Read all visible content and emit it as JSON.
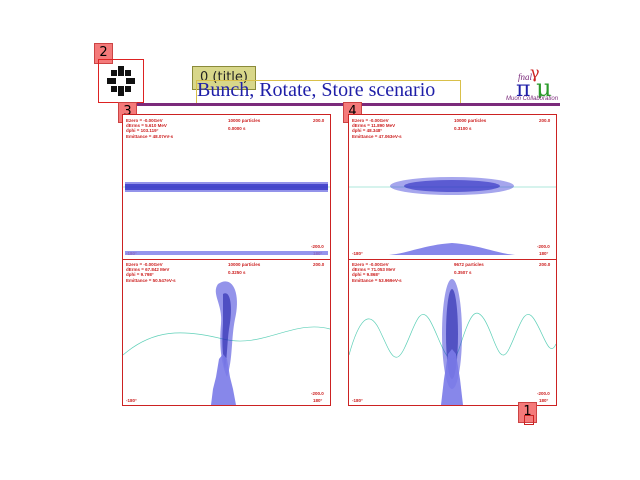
{
  "markers": {
    "m0": "0 (title)",
    "m1": "1",
    "m2": "2",
    "m3": "3",
    "m4": "4"
  },
  "slide": {
    "title": "Bunch, Rotate, Store scenario",
    "logo_caption": "Muon Collaboration",
    "logo_glyphs": "μ"
  },
  "panels": {
    "left_top": {
      "line1": "Ezero =  -0.00GeV",
      "line2": "dErms =  5.610 MeV",
      "line3": "dphi =  103.119°",
      "line4": "Emittance = 48.07eV-s",
      "count": "10000 particles",
      "time": "0.0000 s",
      "ytop": "200.0",
      "ybottom": "-200.0",
      "xleft": "-180°",
      "xright": "180°"
    },
    "right_top": {
      "line1": "Ezero =  -0.00GeV",
      "line2": "dErms =  11.890 MeV",
      "line3": "dphi =  48.348°",
      "line4": "Emittance = 47.063eV-s",
      "count": "10000 particles",
      "time": "0.3100 s",
      "ytop": "200.0",
      "ybottom": "-200.0",
      "xleft": "-180°",
      "xright": "180°"
    },
    "left_bottom": {
      "line1": "Ezero =  -0.00GeV",
      "line2": "dErms =  67.842 MeV",
      "line3": "dphi =  9.798°",
      "line4": "Emittance = 50.547eV-s",
      "count": "10000 particles",
      "time": "0.3250 s",
      "ytop": "200.0",
      "ybottom": "-200.0",
      "xleft": "-180°",
      "xright": "180°"
    },
    "right_bottom": {
      "line1": "Ezero =  -0.00GeV",
      "line2": "dErms =  71.053 MeV",
      "line3": "dphi =  9.868°",
      "line4": "Emittance = 53.969eV-s",
      "count": "9672 particles",
      "time": "0.3507 s",
      "ytop": "200.0",
      "ybottom": "-200.0",
      "xleft": "-180°",
      "xright": "180°"
    }
  },
  "colors": {
    "frame": "#cc2222",
    "title": "#1f1fa8",
    "particles": "#3a3ad8",
    "histogram": "#7a7ae8",
    "rf_curve": "#5fd0b8",
    "rule": "#7b2a7b"
  }
}
